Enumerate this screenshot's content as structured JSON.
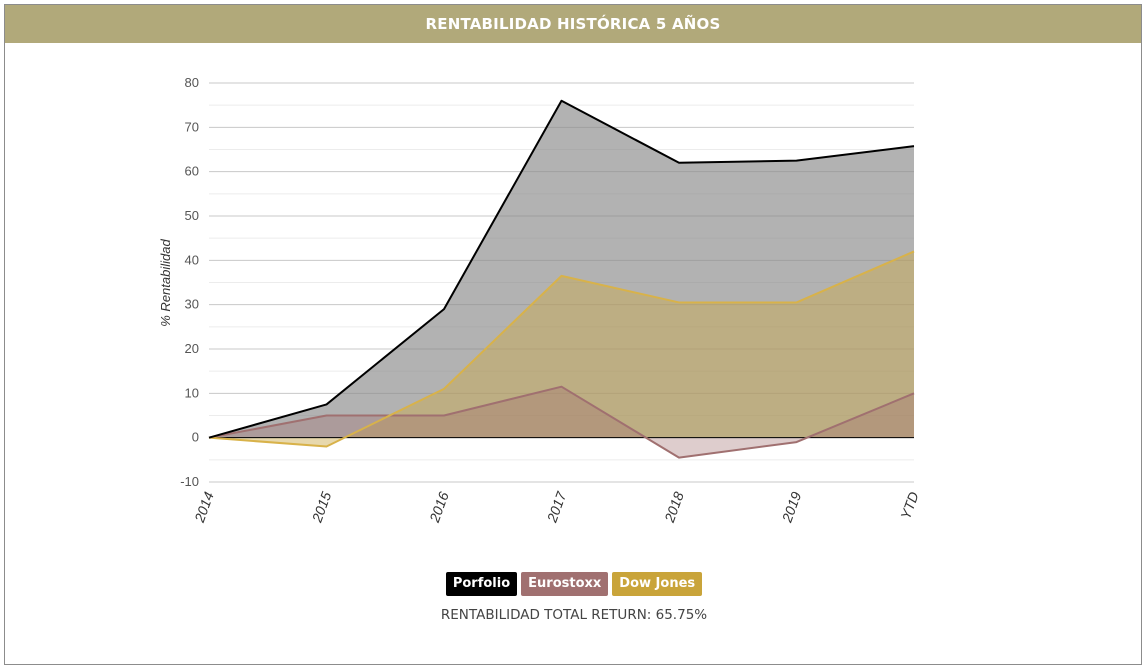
{
  "header": {
    "title": "RENTABILIDAD HISTÓRICA 5 AÑOS"
  },
  "chart_data": {
    "type": "area",
    "title": "RENTABILIDAD HISTÓRICA 5 AÑOS",
    "xlabel": "",
    "ylabel": "% Rentabilidad",
    "categories": [
      "2014",
      "2015",
      "2016",
      "2017",
      "2018",
      "2019",
      "YTD"
    ],
    "ylim": [
      -10,
      80
    ],
    "yticks": [
      80,
      70,
      60,
      50,
      40,
      30,
      20,
      10,
      0,
      -10
    ],
    "grid": true,
    "legend_position": "bottom",
    "series": [
      {
        "name": "Porfolio",
        "values": [
          0,
          7.5,
          29,
          76,
          62,
          62.5,
          65.75
        ],
        "color": "#000000",
        "fill": "#888888"
      },
      {
        "name": "Eurostoxx",
        "values": [
          0,
          5,
          5,
          11.5,
          -4.5,
          -1,
          10
        ],
        "color": "#a07070",
        "fill": "#a07070"
      },
      {
        "name": "Dow Jones",
        "values": [
          0,
          -2,
          11,
          36.5,
          30.5,
          30.5,
          42
        ],
        "color": "#d8b24a",
        "fill": "#c9a84a"
      }
    ]
  },
  "legend": {
    "items": [
      {
        "label": "Porfolio",
        "color": "#000000"
      },
      {
        "label": "Eurostoxx",
        "color": "#a07070"
      },
      {
        "label": "Dow Jones",
        "color": "#c9a43a"
      }
    ]
  },
  "footer": {
    "text": "RENTABILIDAD TOTAL RETURN: 65.75%"
  }
}
